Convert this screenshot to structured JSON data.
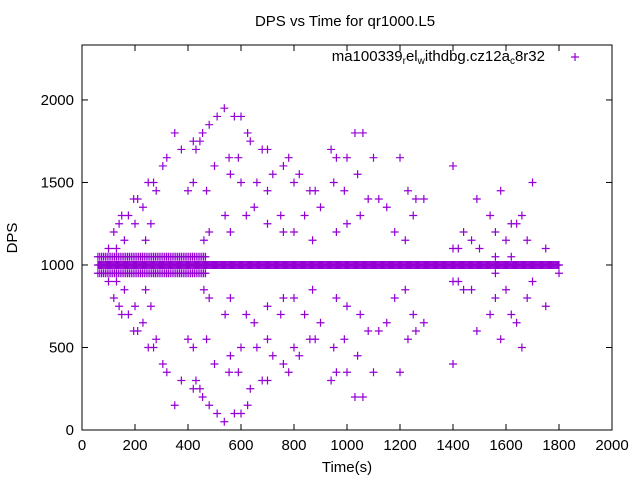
{
  "chart_data": {
    "type": "scatter",
    "title": "DPS vs Time for qr1000.L5",
    "xlabel": "Time(s)",
    "ylabel": "DPS",
    "xlim": [
      0,
      2000
    ],
    "ylim": [
      0,
      2333
    ],
    "xticks": [
      0,
      200,
      400,
      600,
      800,
      1000,
      1200,
      1400,
      1600,
      1800,
      2000
    ],
    "yticks": [
      0,
      500,
      1000,
      1500,
      2000
    ],
    "grid": false,
    "legend_position": "top-right",
    "marker": "plus",
    "color": "#9400d3",
    "series": [
      {
        "name": "ma100339relwithdbg.cz12ac8r32",
        "legend_main": "ma100339",
        "legend_parts": [
          [
            "r",
            "el"
          ],
          [
            "w",
            "ithdbg.cz12a"
          ],
          [
            "c",
            "8r32"
          ]
        ],
        "bands": [
          {
            "y": 1000,
            "x_start": 60,
            "x_end": 1800,
            "step": 4
          },
          {
            "y": 1050,
            "x_start": 60,
            "x_end": 470,
            "step": 7
          },
          {
            "y": 950,
            "x_start": 60,
            "x_end": 470,
            "step": 7
          }
        ],
        "points": [
          [
            537,
            1950
          ],
          [
            510,
            1900
          ],
          [
            575,
            1900
          ],
          [
            600,
            1900
          ],
          [
            480,
            1850
          ],
          [
            455,
            1800
          ],
          [
            625,
            1800
          ],
          [
            350,
            1800
          ],
          [
            375,
            1700
          ],
          [
            420,
            1750
          ],
          [
            445,
            1750
          ],
          [
            635,
            1750
          ],
          [
            430,
            1700
          ],
          [
            555,
            1650
          ],
          [
            590,
            1650
          ],
          [
            680,
            1700
          ],
          [
            700,
            1700
          ],
          [
            320,
            1650
          ],
          [
            305,
            1600
          ],
          [
            250,
            1500
          ],
          [
            280,
            1450
          ],
          [
            270,
            1500
          ],
          [
            195,
            1400
          ],
          [
            210,
            1400
          ],
          [
            230,
            1350
          ],
          [
            175,
            1300
          ],
          [
            150,
            1300
          ],
          [
            140,
            1250
          ],
          [
            120,
            1200
          ],
          [
            200,
            1250
          ],
          [
            260,
            1250
          ],
          [
            240,
            1150
          ],
          [
            160,
            1150
          ],
          [
            130,
            1100
          ],
          [
            100,
            1100
          ],
          [
            420,
            1500
          ],
          [
            400,
            1450
          ],
          [
            470,
            1450
          ],
          [
            500,
            1600
          ],
          [
            560,
            1550
          ],
          [
            600,
            1500
          ],
          [
            660,
            1500
          ],
          [
            720,
            1550
          ],
          [
            700,
            1450
          ],
          [
            650,
            1350
          ],
          [
            620,
            1300
          ],
          [
            540,
            1300
          ],
          [
            480,
            1200
          ],
          [
            460,
            1150
          ],
          [
            560,
            1200
          ],
          [
            760,
            1600
          ],
          [
            780,
            1650
          ],
          [
            800,
            1500
          ],
          [
            820,
            1550
          ],
          [
            860,
            1450
          ],
          [
            880,
            1450
          ],
          [
            840,
            1300
          ],
          [
            800,
            1200
          ],
          [
            760,
            1200
          ],
          [
            700,
            1250
          ],
          [
            750,
            1300
          ],
          [
            900,
            1350
          ],
          [
            870,
            1150
          ],
          [
            940,
            1700
          ],
          [
            960,
            1650
          ],
          [
            1000,
            1650
          ],
          [
            950,
            1500
          ],
          [
            990,
            1450
          ],
          [
            1030,
            1800
          ],
          [
            1060,
            1800
          ],
          [
            1040,
            1550
          ],
          [
            1080,
            1400
          ],
          [
            1100,
            1650
          ],
          [
            1120,
            1400
          ],
          [
            1050,
            1300
          ],
          [
            1000,
            1250
          ],
          [
            960,
            1200
          ],
          [
            1150,
            1350
          ],
          [
            1180,
            1200
          ],
          [
            1200,
            1650
          ],
          [
            1230,
            1450
          ],
          [
            1260,
            1400
          ],
          [
            1290,
            1400
          ],
          [
            1250,
            1300
          ],
          [
            1220,
            1150
          ],
          [
            1400,
            1600
          ],
          [
            1440,
            1200
          ],
          [
            1470,
            1150
          ],
          [
            1490,
            1400
          ],
          [
            1420,
            1100
          ],
          [
            1540,
            1300
          ],
          [
            1580,
            1450
          ],
          [
            1560,
            1200
          ],
          [
            1620,
            1250
          ],
          [
            1640,
            1250
          ],
          [
            1660,
            1300
          ],
          [
            1700,
            1500
          ],
          [
            1600,
            1150
          ],
          [
            1750,
            1100
          ],
          [
            1680,
            1150
          ],
          [
            537,
            50
          ],
          [
            510,
            100
          ],
          [
            575,
            100
          ],
          [
            600,
            100
          ],
          [
            480,
            150
          ],
          [
            455,
            200
          ],
          [
            625,
            150
          ],
          [
            350,
            150
          ],
          [
            375,
            300
          ],
          [
            420,
            250
          ],
          [
            445,
            250
          ],
          [
            635,
            250
          ],
          [
            430,
            300
          ],
          [
            555,
            350
          ],
          [
            590,
            350
          ],
          [
            680,
            300
          ],
          [
            700,
            300
          ],
          [
            320,
            350
          ],
          [
            305,
            400
          ],
          [
            250,
            500
          ],
          [
            280,
            550
          ],
          [
            270,
            500
          ],
          [
            195,
            600
          ],
          [
            210,
            600
          ],
          [
            230,
            650
          ],
          [
            175,
            700
          ],
          [
            150,
            700
          ],
          [
            140,
            750
          ],
          [
            120,
            800
          ],
          [
            200,
            750
          ],
          [
            260,
            750
          ],
          [
            240,
            850
          ],
          [
            160,
            850
          ],
          [
            130,
            900
          ],
          [
            100,
            900
          ],
          [
            420,
            500
          ],
          [
            400,
            550
          ],
          [
            470,
            550
          ],
          [
            500,
            400
          ],
          [
            560,
            450
          ],
          [
            600,
            500
          ],
          [
            660,
            500
          ],
          [
            720,
            450
          ],
          [
            700,
            550
          ],
          [
            650,
            650
          ],
          [
            620,
            700
          ],
          [
            540,
            700
          ],
          [
            480,
            800
          ],
          [
            460,
            850
          ],
          [
            560,
            800
          ],
          [
            760,
            400
          ],
          [
            780,
            350
          ],
          [
            800,
            500
          ],
          [
            820,
            450
          ],
          [
            860,
            550
          ],
          [
            880,
            550
          ],
          [
            840,
            700
          ],
          [
            800,
            800
          ],
          [
            760,
            800
          ],
          [
            700,
            750
          ],
          [
            750,
            700
          ],
          [
            900,
            650
          ],
          [
            870,
            850
          ],
          [
            940,
            300
          ],
          [
            960,
            350
          ],
          [
            1000,
            350
          ],
          [
            950,
            500
          ],
          [
            990,
            550
          ],
          [
            1030,
            200
          ],
          [
            1060,
            200
          ],
          [
            1040,
            450
          ],
          [
            1080,
            600
          ],
          [
            1100,
            350
          ],
          [
            1120,
            600
          ],
          [
            1050,
            700
          ],
          [
            1000,
            750
          ],
          [
            960,
            800
          ],
          [
            1150,
            650
          ],
          [
            1180,
            800
          ],
          [
            1200,
            350
          ],
          [
            1230,
            550
          ],
          [
            1260,
            600
          ],
          [
            1290,
            650
          ],
          [
            1250,
            700
          ],
          [
            1220,
            850
          ],
          [
            1400,
            400
          ],
          [
            1440,
            850
          ],
          [
            1470,
            850
          ],
          [
            1490,
            600
          ],
          [
            1420,
            900
          ],
          [
            1540,
            700
          ],
          [
            1580,
            550
          ],
          [
            1560,
            800
          ],
          [
            1620,
            700
          ],
          [
            1640,
            650
          ],
          [
            1660,
            500
          ],
          [
            1700,
            900
          ],
          [
            1600,
            850
          ],
          [
            1750,
            750
          ],
          [
            1680,
            800
          ],
          [
            1400,
            1100
          ],
          [
            1500,
            1100
          ],
          [
            1560,
            1050
          ],
          [
            1620,
            1050
          ],
          [
            1800,
            950
          ],
          [
            1560,
            950
          ],
          [
            1400,
            900
          ]
        ]
      }
    ]
  }
}
